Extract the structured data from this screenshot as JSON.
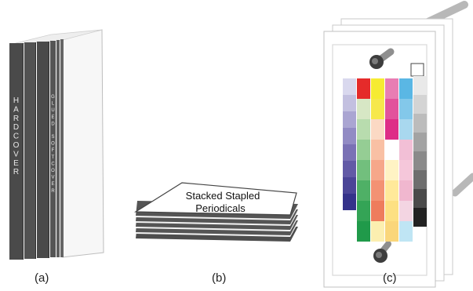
{
  "panel_a": {
    "hardcover_label": "HARDCOVER",
    "glued_label": "GLUED",
    "softcover_label": "SOFTCOVER",
    "caption": "(a)"
  },
  "panel_b": {
    "label_line1": "Stacked Stapled",
    "label_line2": "Periodicals",
    "caption": "(b)"
  },
  "panel_c": {
    "caption": "(c)",
    "chart_columns": [
      [
        "#d9d8ee",
        "#c3c0e0",
        "#aaa5d2",
        "#928bc4",
        "#7a71b5",
        "#625aa6",
        "#4b4597",
        "#34328a"
      ],
      [
        "#e52b2a",
        "#d7e7c5",
        "#b8dcae",
        "#95cd94",
        "#72bf7d",
        "#4fb066",
        "#34a456",
        "#209a4a"
      ],
      [
        "#f6eb32",
        "#f6e84c",
        "#fbd9c4",
        "#f9c0a4",
        "#f6a78a",
        "#f39273",
        "#ee7c5d",
        "#fcefb0"
      ],
      [
        "#e87db3",
        "#e2529c",
        "#de2d87",
        "#ffffff",
        "#fff3c4",
        "#ffe99a",
        "#fde082",
        "#fad67a"
      ],
      [
        "#5ab7e4",
        "#83c8ea",
        "#a9d8ef",
        "#f2bfd6",
        "#f5c7da",
        "#f0b7cf",
        "#f3d5e2",
        "#bfe5f4"
      ],
      [
        "#e9e9e9",
        "#d4d4d4",
        "#bcbcbc",
        "#a3a3a3",
        "#8a8a8a",
        "#6e6e6e",
        "#4b4b4b",
        "#222222"
      ]
    ]
  }
}
